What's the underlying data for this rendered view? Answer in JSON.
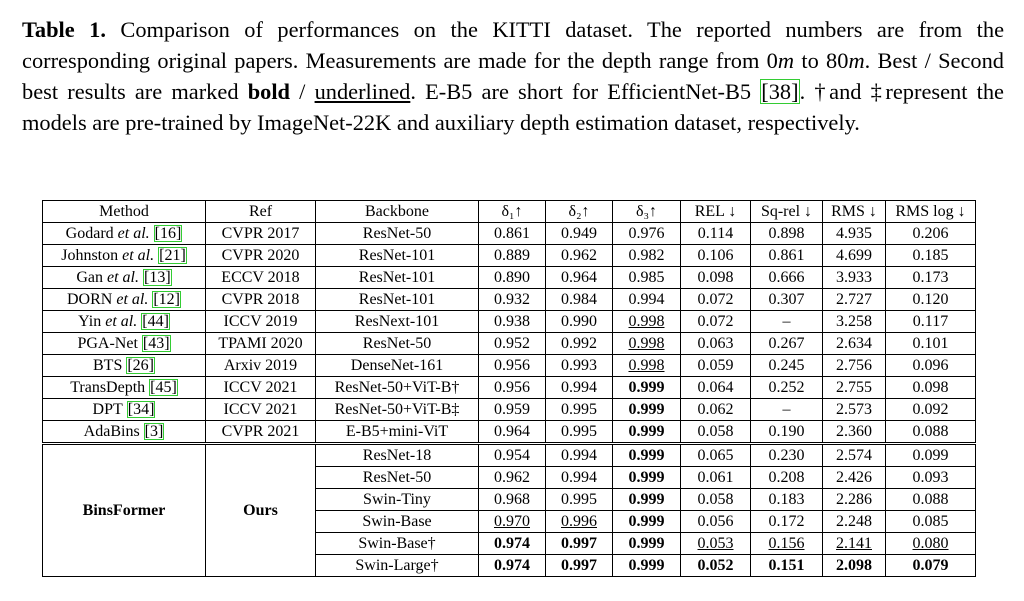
{
  "caption": [
    {
      "text": "Table 1.",
      "style": "bold"
    },
    {
      "text": " Comparison of performances on the KITTI dataset. The reported numbers are from the corresponding original papers. Measurements are made for the depth range from 0",
      "style": "plain"
    },
    {
      "text": "m",
      "style": "italic"
    },
    {
      "text": " to 80",
      "style": "plain"
    },
    {
      "text": "m",
      "style": "italic"
    },
    {
      "text": ". Best / Second best results are marked ",
      "style": "plain"
    },
    {
      "text": "bold",
      "style": "bold"
    },
    {
      "text": " / ",
      "style": "plain"
    },
    {
      "text": "underlined",
      "style": "underline"
    },
    {
      "text": ". E-B5 are short for EfficientNet-B5 ",
      "style": "plain"
    },
    {
      "text": "[38]",
      "style": "cite"
    },
    {
      "text": ". †and ‡represent the models are pre-trained by ImageNet-22K and auxiliary depth estimation dataset, respectively.",
      "style": "plain"
    }
  ],
  "table": {
    "header": [
      "Method",
      "Ref",
      "Backbone",
      "δ₁↑",
      "δ₂↑",
      "δ₃↑",
      "REL ↓",
      "Sq-rel ↓",
      "RMS ↓",
      "RMS log ↓"
    ],
    "rows": [
      {
        "method": {
          "name": "Godard",
          "etal": "et al.",
          "cite": "[16]"
        },
        "ref": "CVPR 2017",
        "backbone": "ResNet-50",
        "values": [
          "0.861",
          "0.949",
          "0.976",
          "0.114",
          "0.898",
          "4.935",
          "0.206"
        ],
        "bold": [],
        "underline": []
      },
      {
        "method": {
          "name": "Johnston",
          "etal": "et al.",
          "cite": "[21]"
        },
        "ref": "CVPR 2020",
        "backbone": "ResNet-101",
        "values": [
          "0.889",
          "0.962",
          "0.982",
          "0.106",
          "0.861",
          "4.699",
          "0.185"
        ],
        "bold": [],
        "underline": []
      },
      {
        "method": {
          "name": "Gan",
          "etal": "et al.",
          "cite": "[13]"
        },
        "ref": "ECCV 2018",
        "backbone": "ResNet-101",
        "values": [
          "0.890",
          "0.964",
          "0.985",
          "0.098",
          "0.666",
          "3.933",
          "0.173"
        ],
        "bold": [],
        "underline": []
      },
      {
        "method": {
          "name": "DORN",
          "etal": "et al.",
          "cite": "[12]"
        },
        "ref": "CVPR 2018",
        "backbone": "ResNet-101",
        "values": [
          "0.932",
          "0.984",
          "0.994",
          "0.072",
          "0.307",
          "2.727",
          "0.120"
        ],
        "bold": [],
        "underline": []
      },
      {
        "method": {
          "name": "Yin",
          "etal": "et al.",
          "cite": "[44]"
        },
        "ref": "ICCV 2019",
        "backbone": "ResNext-101",
        "values": [
          "0.938",
          "0.990",
          "0.998",
          "0.072",
          "–",
          "3.258",
          "0.117"
        ],
        "bold": [],
        "underline": [
          2
        ]
      },
      {
        "method": {
          "name": "PGA-Net",
          "cite": "[43]"
        },
        "ref": "TPAMI 2020",
        "backbone": "ResNet-50",
        "values": [
          "0.952",
          "0.992",
          "0.998",
          "0.063",
          "0.267",
          "2.634",
          "0.101"
        ],
        "bold": [],
        "underline": [
          2
        ]
      },
      {
        "method": {
          "name": "BTS",
          "cite": "[26]"
        },
        "ref": "Arxiv 2019",
        "backbone": "DenseNet-161",
        "values": [
          "0.956",
          "0.993",
          "0.998",
          "0.059",
          "0.245",
          "2.756",
          "0.096"
        ],
        "bold": [],
        "underline": [
          2
        ]
      },
      {
        "method": {
          "name": "TransDepth",
          "cite": "[45]"
        },
        "ref": "ICCV 2021",
        "backbone": "ResNet-50+ViT-B†",
        "values": [
          "0.956",
          "0.994",
          "0.999",
          "0.064",
          "0.252",
          "2.755",
          "0.098"
        ],
        "bold": [
          2
        ],
        "underline": []
      },
      {
        "method": {
          "name": "DPT",
          "cite": "[34]"
        },
        "ref": "ICCV 2021",
        "backbone": "ResNet-50+ViT-B‡",
        "values": [
          "0.959",
          "0.995",
          "0.999",
          "0.062",
          "–",
          "2.573",
          "0.092"
        ],
        "bold": [
          2
        ],
        "underline": []
      },
      {
        "method": {
          "name": "AdaBins",
          "cite": "[3]"
        },
        "ref": "CVPR 2021",
        "backbone": "E-B5+mini-ViT",
        "values": [
          "0.964",
          "0.995",
          "0.999",
          "0.058",
          "0.190",
          "2.360",
          "0.088"
        ],
        "bold": [
          2
        ],
        "underline": []
      }
    ],
    "group": {
      "method": "BinsFormer",
      "ref": "Ours",
      "rows": [
        {
          "backbone": "ResNet-18",
          "values": [
            "0.954",
            "0.994",
            "0.999",
            "0.065",
            "0.230",
            "2.574",
            "0.099"
          ],
          "bold": [
            2
          ],
          "underline": []
        },
        {
          "backbone": "ResNet-50",
          "values": [
            "0.962",
            "0.994",
            "0.999",
            "0.061",
            "0.208",
            "2.426",
            "0.093"
          ],
          "bold": [
            2
          ],
          "underline": []
        },
        {
          "backbone": "Swin-Tiny",
          "values": [
            "0.968",
            "0.995",
            "0.999",
            "0.058",
            "0.183",
            "2.286",
            "0.088"
          ],
          "bold": [
            2
          ],
          "underline": []
        },
        {
          "backbone": "Swin-Base",
          "values": [
            "0.970",
            "0.996",
            "0.999",
            "0.056",
            "0.172",
            "2.248",
            "0.085"
          ],
          "bold": [
            2
          ],
          "underline": [
            0,
            1
          ]
        },
        {
          "backbone": "Swin-Base†",
          "values": [
            "0.974",
            "0.997",
            "0.999",
            "0.053",
            "0.156",
            "2.141",
            "0.080"
          ],
          "bold": [
            0,
            1,
            2
          ],
          "underline": [
            3,
            4,
            5,
            6
          ]
        },
        {
          "backbone": "Swin-Large†",
          "values": [
            "0.974",
            "0.997",
            "0.999",
            "0.052",
            "0.151",
            "2.098",
            "0.079"
          ],
          "bold": [
            0,
            1,
            2,
            3,
            4,
            5,
            6
          ],
          "underline": []
        }
      ]
    }
  }
}
